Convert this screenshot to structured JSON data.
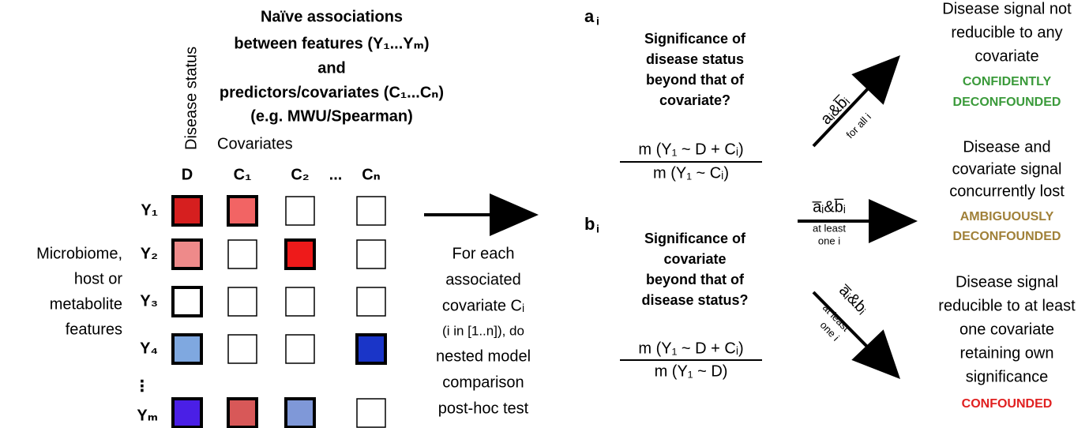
{
  "disease_status": "Disease status",
  "title": [
    "Naïve associations",
    "between features (Y₁...Yₘ)",
    "and",
    "predictors/covariates (C₁...Cₙ)",
    "(e.g. MWU/Spearman)"
  ],
  "covariates_label": "Covariates",
  "columns": [
    "D",
    "C₁",
    "C₂",
    "...",
    "Cₙ"
  ],
  "rows": [
    "Y₁",
    "Y₂",
    "Y₃",
    "Y₄",
    "⋮",
    "Yₘ"
  ],
  "left_label": [
    "Microbiome,",
    "host or",
    "metabolite",
    "features"
  ],
  "procedure": [
    "For each",
    "associated",
    "covariate Cᵢ",
    "(i in [1..n]), do",
    "nested model",
    "comparison",
    "post-hoc test"
  ],
  "test_a": {
    "label": "a",
    "index": "i",
    "question": [
      "Significance of",
      "disease status",
      "beyond that of",
      "covariate?"
    ],
    "numerator": "m (Y₁ ~ D + Cᵢ)",
    "denominator": "m (Y₁ ~ Cᵢ)"
  },
  "test_b": {
    "label": "b",
    "index": "i",
    "question": [
      "Significance of",
      "covariate",
      "beyond that of",
      "disease status?"
    ],
    "numerator": "m (Y₁ ~ D + Cᵢ)",
    "denominator": "m (Y₁ ~ D)"
  },
  "outcomes": [
    {
      "condition": "aᵢ&b̅ᵢ",
      "scope": [
        "for all i"
      ],
      "description": [
        "Disease signal not",
        "reducible to any",
        "covariate"
      ],
      "verdict": [
        "CONFIDENTLY",
        "DECONFOUNDED"
      ]
    },
    {
      "condition": "a̅ᵢ&b̅ᵢ",
      "scope": [
        "at least",
        "one i"
      ],
      "description": [
        "Disease and",
        "covariate signal",
        "concurrently lost"
      ],
      "verdict": [
        "AMBIGUOUSLY",
        "DECONFOUNDED"
      ]
    },
    {
      "condition": "a̅ᵢ&bᵢ",
      "scope": [
        "at least",
        "one i"
      ],
      "description": [
        "Disease signal",
        "reducible to at least",
        "one covariate",
        "retaining own",
        "significance"
      ],
      "verdict": [
        "CONFOUNDED"
      ]
    }
  ]
}
